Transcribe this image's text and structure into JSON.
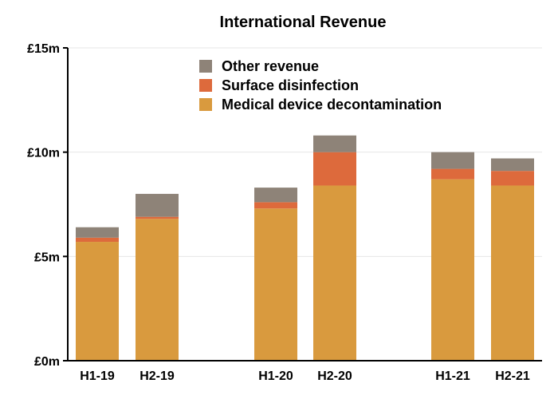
{
  "chart_data": {
    "type": "bar",
    "stacked": true,
    "title": "International Revenue",
    "xlabel": "",
    "ylabel": "",
    "categories": [
      "H1-19",
      "H2-19",
      "H1-20",
      "H2-20",
      "H1-21",
      "H2-21"
    ],
    "series": [
      {
        "name": "Medical device decontamination",
        "color": "#D99A3E",
        "values": [
          5.7,
          6.8,
          7.3,
          8.4,
          8.7,
          8.4
        ]
      },
      {
        "name": "Surface disinfection",
        "color": "#DD6A3C",
        "values": [
          0.2,
          0.1,
          0.3,
          1.6,
          0.5,
          0.7
        ]
      },
      {
        "name": "Other revenue",
        "color": "#8E8378",
        "values": [
          0.5,
          1.1,
          0.7,
          0.8,
          0.8,
          0.6
        ]
      }
    ],
    "ylim": [
      0,
      15
    ],
    "yticks": [
      {
        "value": 0,
        "label": "£0m"
      },
      {
        "value": 5,
        "label": "£5m"
      },
      {
        "value": 10,
        "label": "£10m"
      },
      {
        "value": 15,
        "label": "£15m"
      }
    ],
    "grid": true,
    "legend_position": "top",
    "legend_order": [
      "Other revenue",
      "Surface disinfection",
      "Medical device decontamination"
    ]
  }
}
